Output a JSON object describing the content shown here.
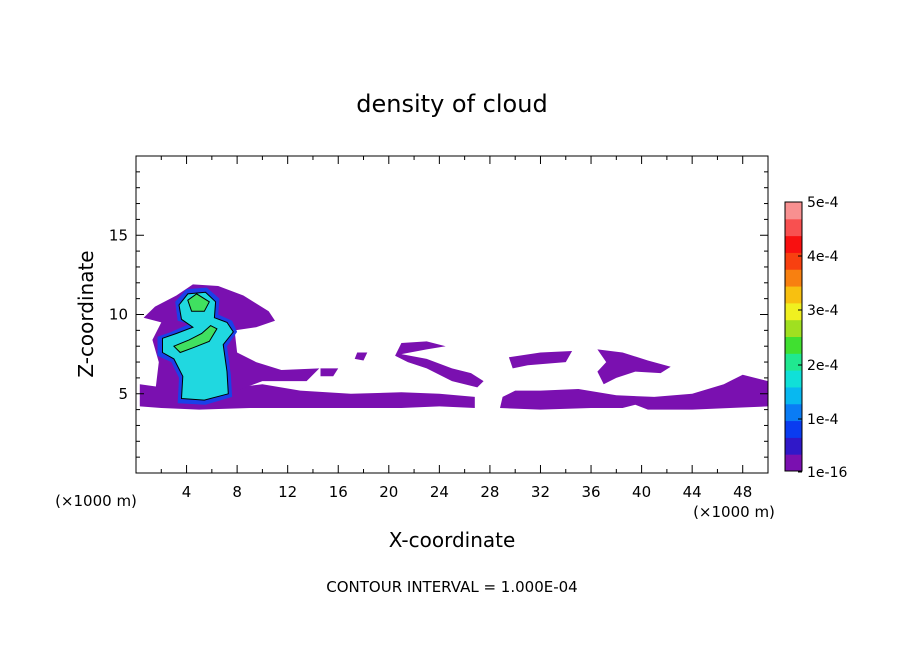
{
  "chart_data": {
    "type": "heatmap",
    "title": "density of cloud",
    "xlabel": "X-coordinate",
    "ylabel": "Z-coordinate",
    "x_unit": "(×1000 m)",
    "y_unit": "(×1000 m)",
    "xlim": [
      0,
      50
    ],
    "ylim": [
      0,
      20
    ],
    "x_ticks": [
      "4",
      "8",
      "12",
      "16",
      "20",
      "24",
      "28",
      "32",
      "36",
      "40",
      "44",
      "48"
    ],
    "y_ticks": [
      "5",
      "10",
      "15"
    ],
    "footer": "CONTOUR INTERVAL = 1.000E-04",
    "colorbar": {
      "range": [
        1e-16,
        0.0005
      ],
      "tick_labels": [
        "5e-4",
        "4e-4",
        "3e-4",
        "2e-4",
        "1e-4",
        "1e-16"
      ],
      "colors": [
        "#7a10b0",
        "#3018c8",
        "#0a3cf0",
        "#0a7cf5",
        "#08b8f0",
        "#10e0d8",
        "#20e890",
        "#40e030",
        "#a0e020",
        "#f0f020",
        "#f8c010",
        "#f88010",
        "#f84010",
        "#f81010",
        "#f85050",
        "#f89090"
      ]
    },
    "regions": [
      {
        "name": "anvil-layer",
        "level": 1e-16,
        "color": "#7a10b0",
        "polygon": [
          [
            0.3,
            4.2
          ],
          [
            2,
            4.1
          ],
          [
            5,
            4.0
          ],
          [
            9,
            4.1
          ],
          [
            13,
            4.1
          ],
          [
            17,
            4.1
          ],
          [
            21,
            4.1
          ],
          [
            24,
            4.2
          ],
          [
            26.8,
            4.1
          ],
          [
            26.8,
            4.8
          ],
          [
            24,
            5.0
          ],
          [
            21,
            5.1
          ],
          [
            17,
            5.0
          ],
          [
            13,
            5.2
          ],
          [
            10,
            5.6
          ],
          [
            8,
            5.4
          ],
          [
            6,
            5.2
          ],
          [
            3,
            5.3
          ],
          [
            0.3,
            5.6
          ]
        ]
      },
      {
        "name": "tower-outer",
        "level": 1e-16,
        "color": "#7a10b0",
        "polygon": [
          [
            1.5,
            5.0
          ],
          [
            1.8,
            7.0
          ],
          [
            1.3,
            8.4
          ],
          [
            2.0,
            9.5
          ],
          [
            0.6,
            9.8
          ],
          [
            1.5,
            10.5
          ],
          [
            3.2,
            11.2
          ],
          [
            4.5,
            11.9
          ],
          [
            6.5,
            11.8
          ],
          [
            8.5,
            11.2
          ],
          [
            10.5,
            10.2
          ],
          [
            11.0,
            9.6
          ],
          [
            9.5,
            9.2
          ],
          [
            7.8,
            9.0
          ],
          [
            8.0,
            7.6
          ],
          [
            9.5,
            7.0
          ],
          [
            11.5,
            6.5
          ],
          [
            14.5,
            6.6
          ],
          [
            13.5,
            5.8
          ],
          [
            10,
            5.8
          ],
          [
            8,
            5.2
          ],
          [
            6,
            4.6
          ],
          [
            3,
            4.8
          ]
        ]
      },
      {
        "name": "anvil-right",
        "level": 1e-16,
        "color": "#7a10b0",
        "polygon": [
          [
            28.8,
            4.1
          ],
          [
            32,
            4.0
          ],
          [
            36,
            4.1
          ],
          [
            38.5,
            4.1
          ],
          [
            39.5,
            4.3
          ],
          [
            40.5,
            4.0
          ],
          [
            44,
            4.0
          ],
          [
            47,
            4.1
          ],
          [
            50,
            4.2
          ],
          [
            50,
            5.8
          ],
          [
            48,
            6.2
          ],
          [
            46.5,
            5.6
          ],
          [
            44,
            5.0
          ],
          [
            41,
            4.8
          ],
          [
            38,
            4.9
          ],
          [
            35,
            5.3
          ],
          [
            32,
            5.2
          ],
          [
            30,
            5.2
          ],
          [
            29,
            4.8
          ]
        ]
      },
      {
        "name": "cloud-patch-1",
        "level": 1e-16,
        "color": "#7a10b0",
        "polygon": [
          [
            21,
            7.5
          ],
          [
            23,
            7.2
          ],
          [
            25,
            6.6
          ],
          [
            26.5,
            6.3
          ],
          [
            27.5,
            5.8
          ],
          [
            27.0,
            5.4
          ],
          [
            25,
            5.8
          ],
          [
            23,
            6.6
          ],
          [
            21.5,
            7.0
          ],
          [
            20.5,
            7.4
          ],
          [
            21.0,
            8.2
          ],
          [
            23,
            8.3
          ],
          [
            24.5,
            8.0
          ],
          [
            23,
            7.8
          ]
        ]
      },
      {
        "name": "cloud-patch-2",
        "level": 1e-16,
        "color": "#7a10b0",
        "polygon": [
          [
            29.5,
            7.3
          ],
          [
            32,
            7.6
          ],
          [
            34.5,
            7.7
          ],
          [
            34,
            7.0
          ],
          [
            31,
            6.8
          ],
          [
            29.8,
            6.6
          ]
        ]
      },
      {
        "name": "cloud-patch-3",
        "level": 1e-16,
        "color": "#7a10b0",
        "polygon": [
          [
            36.5,
            7.8
          ],
          [
            38.5,
            7.6
          ],
          [
            40.5,
            7.1
          ],
          [
            42.3,
            6.7
          ],
          [
            41.5,
            6.3
          ],
          [
            39.5,
            6.4
          ],
          [
            38,
            6.0
          ],
          [
            37,
            5.6
          ],
          [
            36.5,
            6.4
          ],
          [
            37.2,
            7.0
          ]
        ]
      },
      {
        "name": "cloud-patch-4",
        "level": 1e-16,
        "color": "#7a10b0",
        "polygon": [
          [
            17.5,
            7.6
          ],
          [
            18.3,
            7.6
          ],
          [
            18.0,
            7.1
          ],
          [
            17.3,
            7.2
          ]
        ]
      },
      {
        "name": "cloud-patch-5",
        "level": 1e-16,
        "color": "#7a10b0",
        "polygon": [
          [
            14.6,
            6.6
          ],
          [
            16.0,
            6.6
          ],
          [
            15.6,
            6.1
          ],
          [
            14.6,
            6.1
          ]
        ]
      },
      {
        "name": "core-blue",
        "level": 5e-05,
        "color": "#1a40e8",
        "polygon": [
          [
            3.3,
            4.4
          ],
          [
            5.5,
            4.3
          ],
          [
            7.6,
            4.8
          ],
          [
            7.5,
            6.2
          ],
          [
            7.2,
            8.0
          ],
          [
            8.0,
            8.9
          ],
          [
            7.6,
            9.6
          ],
          [
            6.5,
            10.0
          ],
          [
            6.6,
            11.0
          ],
          [
            5.6,
            11.7
          ],
          [
            4.0,
            11.6
          ],
          [
            3.1,
            10.8
          ],
          [
            3.3,
            9.6
          ],
          [
            4.2,
            9.4
          ],
          [
            2.8,
            8.9
          ],
          [
            1.7,
            8.6
          ],
          [
            1.7,
            7.4
          ],
          [
            2.8,
            7.0
          ],
          [
            3.4,
            6.0
          ]
        ]
      },
      {
        "name": "core-cyan",
        "level": 0.0001,
        "color": "#20d8e0",
        "polygon": [
          [
            3.6,
            4.7
          ],
          [
            5.4,
            4.6
          ],
          [
            7.3,
            5.0
          ],
          [
            7.2,
            6.4
          ],
          [
            6.9,
            8.1
          ],
          [
            7.7,
            8.9
          ],
          [
            7.2,
            9.5
          ],
          [
            6.2,
            9.8
          ],
          [
            6.3,
            10.8
          ],
          [
            5.5,
            11.4
          ],
          [
            4.1,
            11.3
          ],
          [
            3.4,
            10.6
          ],
          [
            3.6,
            9.7
          ],
          [
            4.5,
            9.2
          ],
          [
            3.2,
            8.8
          ],
          [
            2.1,
            8.5
          ],
          [
            2.1,
            7.6
          ],
          [
            3.0,
            7.2
          ],
          [
            3.7,
            6.1
          ]
        ]
      },
      {
        "name": "core-green",
        "level": 0.0002,
        "color": "#40e060",
        "polygon": [
          [
            4.1,
            10.9
          ],
          [
            4.8,
            11.3
          ],
          [
            5.8,
            10.8
          ],
          [
            5.4,
            10.2
          ],
          [
            4.4,
            10.2
          ]
        ]
      },
      {
        "name": "core-green-2",
        "level": 0.0002,
        "color": "#40e060",
        "polygon": [
          [
            3.0,
            8.0
          ],
          [
            4.2,
            8.4
          ],
          [
            5.2,
            8.8
          ],
          [
            5.9,
            9.3
          ],
          [
            6.4,
            9.1
          ],
          [
            5.8,
            8.3
          ],
          [
            4.5,
            7.9
          ],
          [
            3.5,
            7.6
          ]
        ]
      }
    ]
  }
}
